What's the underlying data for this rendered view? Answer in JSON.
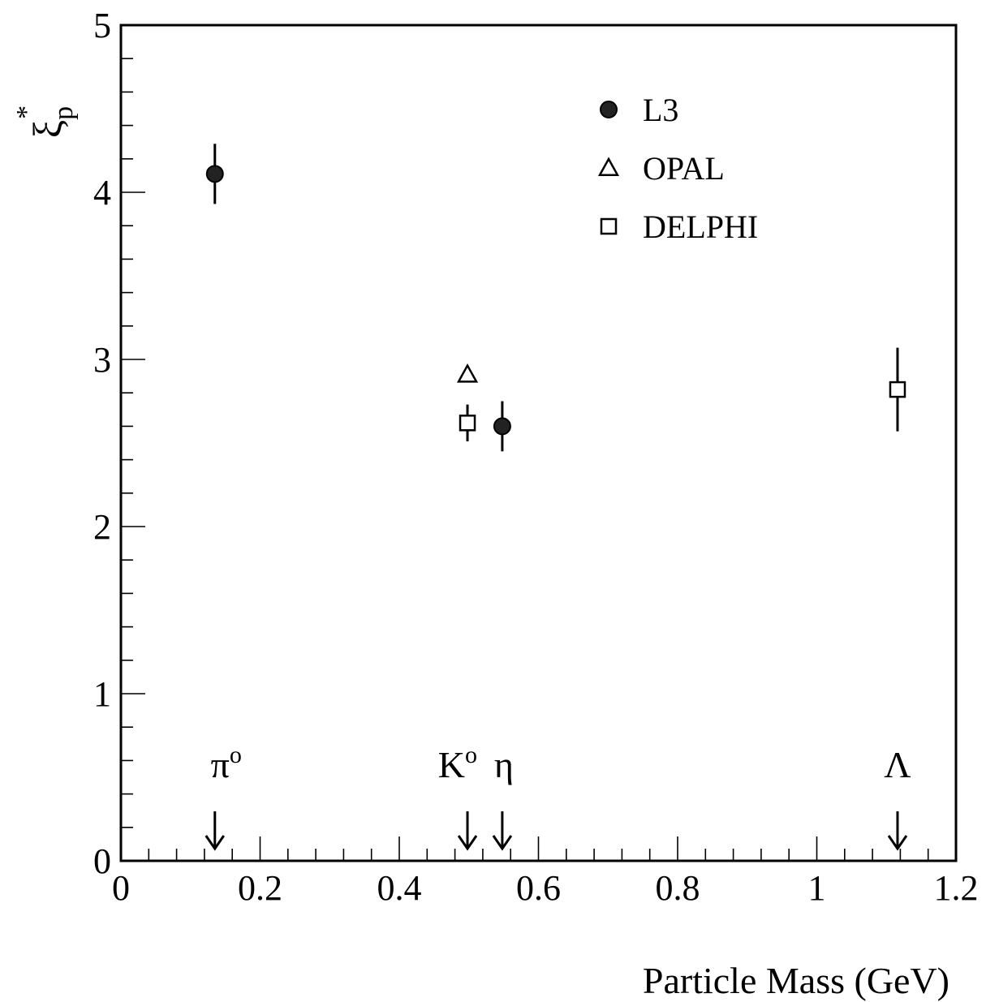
{
  "chart_data": {
    "type": "scatter",
    "xlabel": "Particle Mass (GeV)",
    "ylabel": "ξ",
    "ylabel_sub": "p",
    "ylabel_sup": "*",
    "xlim": [
      0,
      1.2
    ],
    "ylim": [
      0,
      5
    ],
    "x_ticks": [
      {
        "value": 0,
        "label": "0"
      },
      {
        "value": 0.2,
        "label": "0.2"
      },
      {
        "value": 0.4,
        "label": "0.4"
      },
      {
        "value": 0.6,
        "label": "0.6"
      },
      {
        "value": 0.8,
        "label": "0.8"
      },
      {
        "value": 1.0,
        "label": "1"
      },
      {
        "value": 1.2,
        "label": "1.2"
      }
    ],
    "y_ticks": [
      {
        "value": 0,
        "label": "0"
      },
      {
        "value": 1,
        "label": "1"
      },
      {
        "value": 2,
        "label": "2"
      },
      {
        "value": 3,
        "label": "3"
      },
      {
        "value": 4,
        "label": "4"
      },
      {
        "value": 5,
        "label": "5"
      }
    ],
    "grid": false,
    "legend_position": "top-right",
    "series": [
      {
        "name": "L3",
        "marker": "filled-circle",
        "color": "#000000",
        "points": [
          {
            "x": 0.135,
            "y": 4.11,
            "err": 0.18
          },
          {
            "x": 0.548,
            "y": 2.6,
            "err": 0.15
          }
        ]
      },
      {
        "name": "OPAL",
        "marker": "open-triangle",
        "color": "#000000",
        "points": [
          {
            "x": 0.498,
            "y": 2.91,
            "err": 0
          }
        ]
      },
      {
        "name": "DELPHI",
        "marker": "open-square",
        "color": "#000000",
        "points": [
          {
            "x": 0.498,
            "y": 2.62,
            "err": 0.11
          },
          {
            "x": 1.116,
            "y": 2.82,
            "err": 0.25
          }
        ]
      }
    ],
    "annotations": [
      {
        "main": "π",
        "sup": "o",
        "x": 0.135
      },
      {
        "main": "K",
        "sup": "o",
        "x": 0.498
      },
      {
        "main": "η",
        "sup": "",
        "x": 0.548
      },
      {
        "main": "Λ",
        "sup": "",
        "x": 1.116
      }
    ]
  }
}
